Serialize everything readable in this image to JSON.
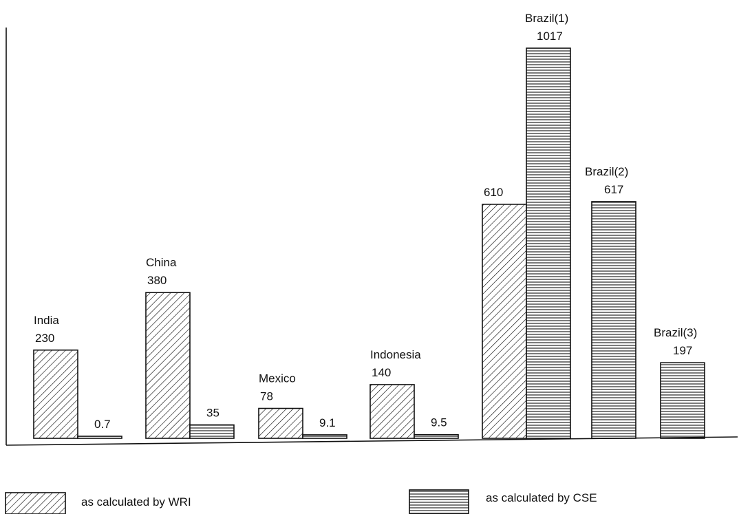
{
  "chart_data": {
    "type": "bar",
    "categories": [
      "India",
      "China",
      "Mexico",
      "Indonesia",
      "",
      "Brazil(2)",
      "Brazil(3)"
    ],
    "series": [
      {
        "name": "as calculated by WRI",
        "values": [
          230,
          380,
          78,
          140,
          610,
          null,
          null
        ],
        "labels": [
          "230",
          "380",
          "78",
          "140",
          "610",
          "",
          ""
        ],
        "color": "#111111"
      },
      {
        "name": "as calculated by CSE",
        "values": [
          0.7,
          35,
          9.1,
          9.5,
          1017,
          617,
          197
        ],
        "labels": [
          "0.7",
          "35",
          "9.1",
          "9.5",
          "1017",
          "617",
          "197"
        ],
        "color": "#111111"
      }
    ],
    "extra_labels": [
      {
        "category_index": 4,
        "series_index": 1,
        "text": "Brazil(1)"
      }
    ],
    "title": "",
    "xlabel": "",
    "ylabel": "",
    "ylim": [
      0,
      1080
    ],
    "grid": false,
    "legend_position": "bottom",
    "legend": [
      {
        "label": "as calculated by WRI",
        "pattern": "diagonal-hatch"
      },
      {
        "label": "as calculated by CSE",
        "pattern": "horizontal-lines"
      }
    ]
  }
}
